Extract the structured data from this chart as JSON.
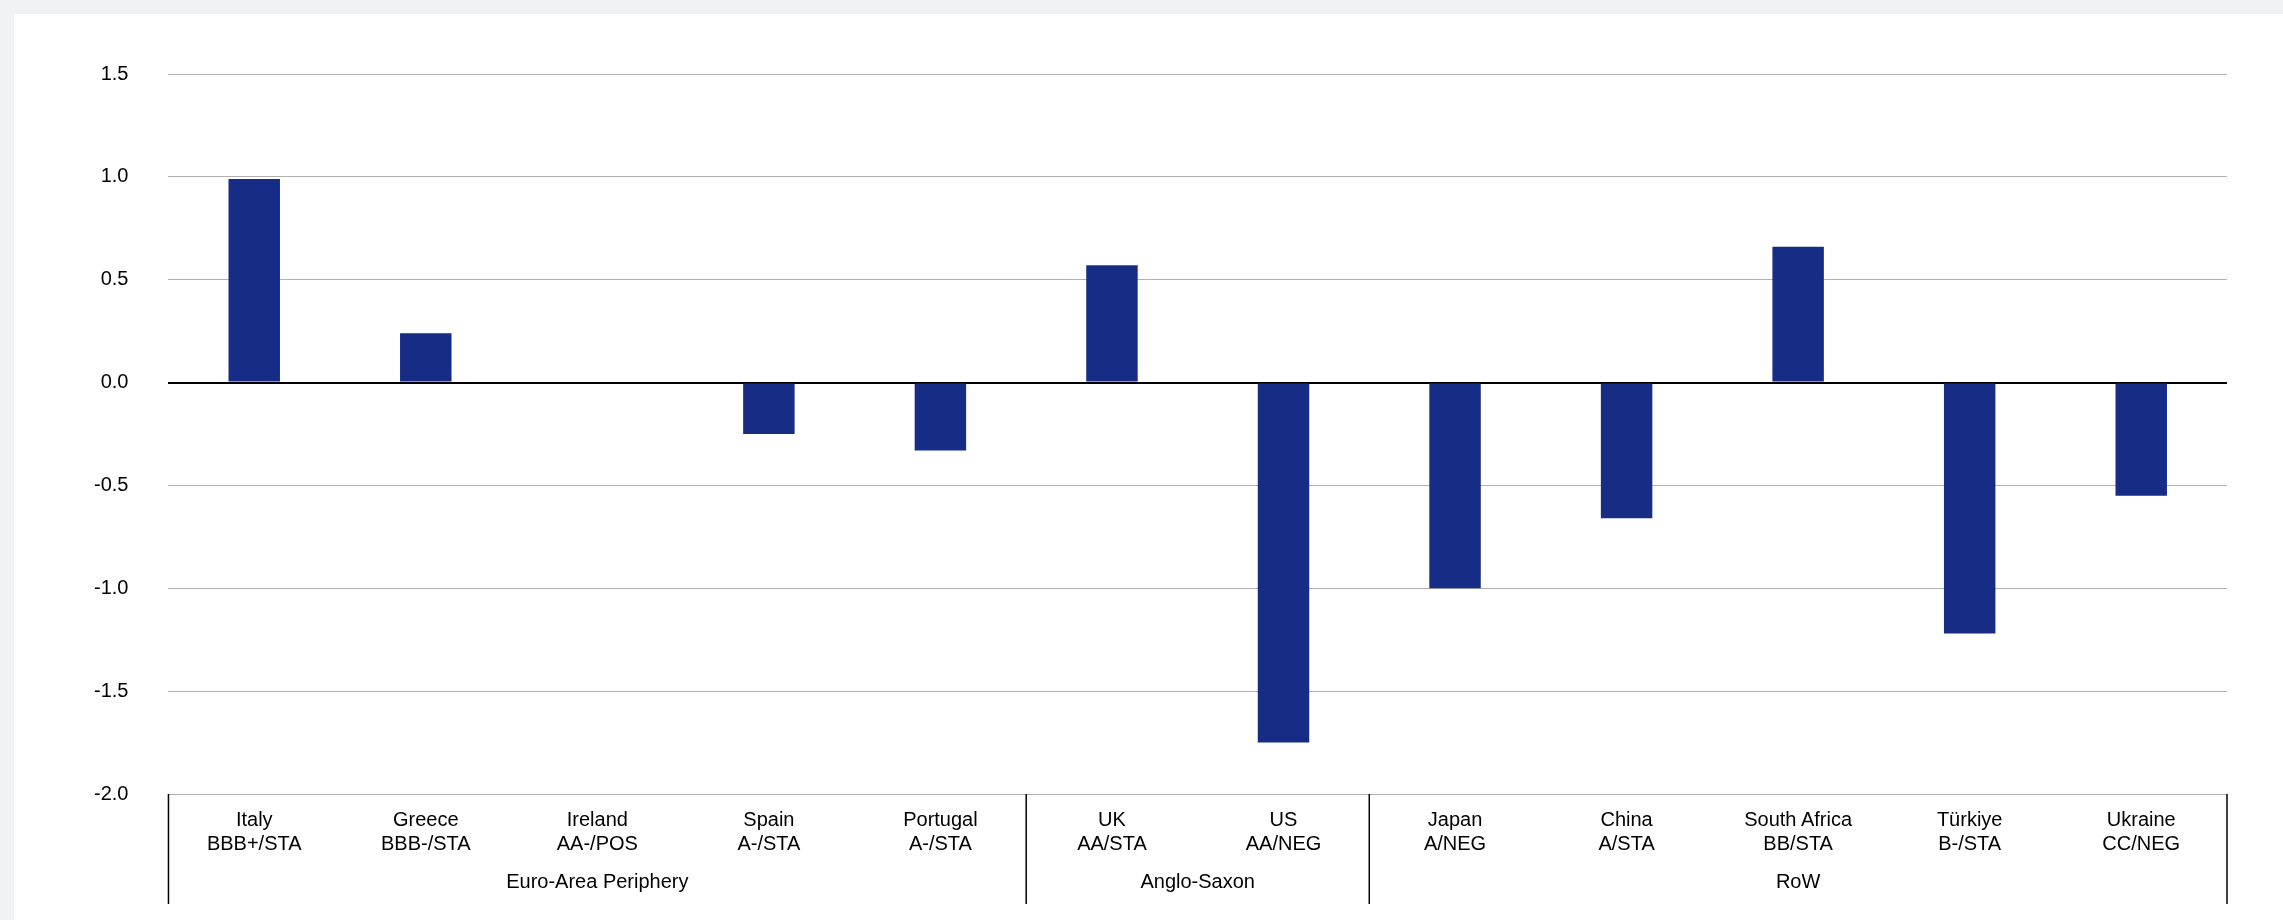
{
  "chart_data": {
    "type": "bar",
    "categories": [
      "Italy\nBBB+/STA",
      "Greece\nBBB-/STA",
      "Ireland\nAA-/POS",
      "Spain\nA-/STA",
      "Portugal\nA-/STA",
      "UK\nAA/STA",
      "US\nAA/NEG",
      "Japan\nA/NEG",
      "China\nA/STA",
      "South Africa\nBB/STA",
      "Türkiye\nB-/STA",
      "Ukraine\nCC/NEG"
    ],
    "values": [
      0.99,
      0.24,
      0,
      -0.25,
      -0.33,
      0.57,
      -1.75,
      -1.0,
      -0.66,
      0.66,
      -1.22,
      -0.55
    ],
    "color": "#172d85",
    "ylim": [
      -2,
      1.5
    ],
    "yticks": [
      {
        "value": -2,
        "label": "-2.0"
      },
      -1.5,
      {
        "value": -1,
        "label": "-1.0"
      },
      -0.5,
      {
        "value": 0,
        "label": "0.0"
      },
      0.5,
      {
        "value": 1,
        "label": "1.0"
      },
      1.5
    ],
    "grid": "y",
    "annotations": [
      "Euro-Area Periphery",
      "Anglo-Saxon",
      "RoW"
    ]
  }
}
